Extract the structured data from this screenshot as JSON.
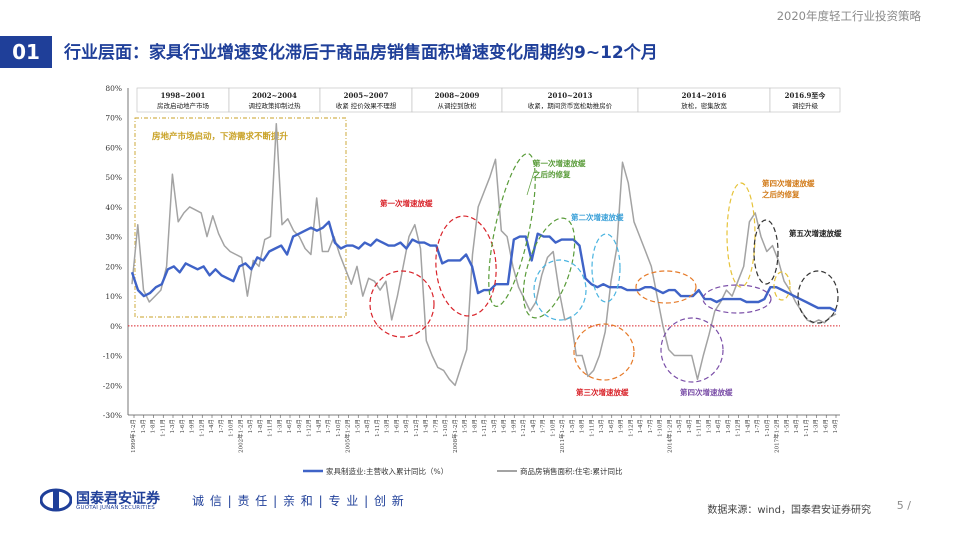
{
  "header": {
    "subtitle": "2020年度轻工行业投资策略",
    "number": "01",
    "title": "行业层面：家具行业增速变化滞后于商品房销售面积增速变化周期约9~12个月"
  },
  "footer": {
    "logo_cn": "国泰君安证券",
    "logo_en": "GUOTAI JUNAN SECURITIES",
    "slogan": "诚 信 | 责 任 | 亲 和 | 专 业 | 创 新",
    "source": "数据来源：wind，国泰君安证券研究",
    "page": "5 /"
  },
  "chart_data": {
    "type": "line",
    "ylim": [
      -30,
      80
    ],
    "yticks": [
      "80%",
      "70%",
      "60%",
      "50%",
      "40%",
      "30%",
      "20%",
      "10%",
      "0%",
      "-10%",
      "-20%",
      "-30%"
    ],
    "xtick_labels": [
      "1999年1-2月",
      "1-5月",
      "1-8月",
      "1-11月",
      "1-3月",
      "1-6月",
      "1-9月",
      "1-12月",
      "1-4月",
      "1-7月",
      "1-10月",
      "2002年1-2月",
      "1-5月",
      "1-8月",
      "1-11月",
      "1-3月",
      "1-6月",
      "1-9月",
      "1-12月",
      "1-4月",
      "1-7月",
      "1-10月",
      "2005年1-2月",
      "1-5月",
      "1-8月",
      "1-11月",
      "1-3月",
      "1-6月",
      "1-9月",
      "1-12月",
      "1-4月",
      "1-7月",
      "1-10月",
      "2008年1-2月",
      "1-5月",
      "1-8月",
      "1-11月",
      "1-3月",
      "1-6月",
      "1-9月",
      "1-12月",
      "1-4月",
      "1-7月",
      "1-10月",
      "2011年1-2月",
      "1-5月",
      "1-8月",
      "1-11月",
      "1-3月",
      "1-6月",
      "1-9月",
      "1-12月",
      "1-4月",
      "1-7月",
      "1-10月",
      "2014年1-2月",
      "1-5月",
      "1-8月",
      "1-11月",
      "1-3月",
      "1-6月",
      "1-9月",
      "1-12月",
      "1-4月",
      "1-7月",
      "1-10月",
      "2017年1-2月",
      "1-5月",
      "1-8月",
      "1-11月",
      "1-3月",
      "1-6月",
      "1-9月"
    ],
    "periods": [
      {
        "range": "1998~2001",
        "desc": "房改启动地产市场"
      },
      {
        "range": "2002~2004",
        "desc": "调控政策抑制过热"
      },
      {
        "range": "2005~2007",
        "desc": "收紧 控价效果不理想"
      },
      {
        "range": "2008~2009",
        "desc": "从调控到放松"
      },
      {
        "range": "2010~2013",
        "desc": "收紧，期间货币宽松助推房价"
      },
      {
        "range": "2014~2016",
        "desc": "放松，密集放宽"
      },
      {
        "range": "2016.9至今",
        "desc": "调控升级"
      }
    ],
    "annotations": {
      "box_label": "房地产市场启动，下游需求不断提升",
      "a1": "第一次增速放缓",
      "a2a": "第一次增速放缓",
      "a2b": "之后的修复",
      "a3": "第二次增速放缓",
      "a4": "第三次增速放缓",
      "a5": "第四次增速放缓",
      "a6a": "第四次增速放缓",
      "a6b": "之后的修复",
      "a7": "第五次增速放缓"
    },
    "series": [
      {
        "name": "家具制造业:主营收入累计同比（%）",
        "color": "#3f63c7",
        "values": [
          18,
          12,
          10,
          11,
          13,
          14,
          19,
          20,
          18,
          21,
          20,
          19,
          20,
          17,
          19,
          17,
          16,
          15,
          20,
          21,
          19,
          23,
          22,
          25,
          26,
          27,
          24,
          30,
          31,
          32,
          33,
          32,
          33,
          35,
          28,
          26,
          27,
          27,
          26,
          28,
          27,
          29,
          28,
          27,
          27,
          28,
          26,
          29,
          28,
          28,
          27,
          27,
          21,
          22,
          22,
          22,
          24,
          20,
          11,
          12,
          12,
          14,
          14,
          14,
          29,
          30,
          30,
          22,
          31,
          30,
          30,
          28,
          29,
          29,
          29,
          27,
          16,
          14,
          13,
          14,
          13,
          13,
          13,
          12,
          12,
          12,
          13,
          13,
          12,
          11,
          12,
          12,
          10,
          10,
          10,
          12,
          9,
          9,
          8,
          9,
          9,
          9,
          9,
          8,
          8,
          8,
          9,
          13,
          13,
          12,
          11,
          10,
          9,
          8,
          7,
          6,
          6,
          6,
          5
        ]
      },
      {
        "name": "商品房销售面积:住宅:累计同比",
        "color": "#a3a3a3",
        "values": [
          14,
          34,
          12,
          8,
          10,
          12,
          20,
          51,
          35,
          38,
          40,
          39,
          38,
          30,
          37,
          31,
          27,
          25,
          24,
          23,
          10,
          22,
          20,
          29,
          30,
          68,
          34,
          36,
          32,
          30,
          26,
          24,
          43,
          25,
          25,
          30,
          24,
          19,
          14,
          20,
          10,
          16,
          15,
          12,
          15,
          2,
          10,
          20,
          30,
          34,
          26,
          -5,
          -10,
          -14,
          -15,
          -18,
          -20,
          -14,
          -8,
          24,
          40,
          45,
          50,
          56,
          32,
          30,
          20,
          13,
          9,
          5,
          8,
          17,
          23,
          25,
          12,
          2,
          3,
          -10,
          -10,
          -17,
          -15,
          -10,
          -2,
          15,
          26,
          55,
          48,
          35,
          30,
          25,
          20,
          10,
          0,
          -8,
          -10,
          -10,
          -10,
          -10,
          -18,
          -10,
          -3,
          5,
          8,
          12,
          10,
          15,
          20,
          35,
          38,
          30,
          25,
          27,
          22,
          15,
          12,
          8,
          5,
          2,
          1,
          2,
          1,
          3,
          4
        ]
      }
    ]
  }
}
